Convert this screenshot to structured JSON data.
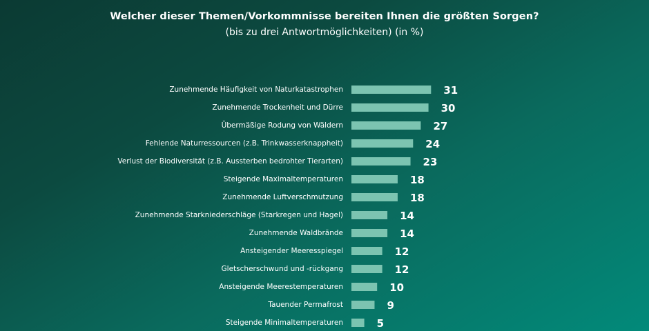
{
  "chart_data": {
    "type": "bar",
    "orientation": "horizontal",
    "title": "Welcher dieser Themen/Vorkommnisse bereiten Ihnen die größten Sorgen?",
    "subtitle": "(bis zu drei Antwortmöglichkeiten) (in %)",
    "categories": [
      "Zunehmende Häufigkeit von Naturkatastrophen",
      "Zunehmende Trockenheit und Dürre",
      "Übermäßige Rodung von Wäldern",
      "Fehlende Naturressourcen (z.B. Trinkwasserknappheit)",
      "Verlust der Biodiversität (z.B. Aussterben bedrohter Tierarten)",
      "Steigende Maximaltemperaturen",
      "Zunehmende Luftverschmutzung",
      "Zunehmende Starkniederschläge (Starkregen und Hagel)",
      "Zunehmende Waldbrände",
      "Ansteigender Meeresspiegel",
      "Gletscherschwund und -rückgang",
      "Ansteigende Meerestemperaturen",
      "Tauender Permafrost",
      "Steigende Minimaltemperaturen"
    ],
    "values": [
      31,
      30,
      27,
      24,
      23,
      18,
      18,
      14,
      14,
      12,
      12,
      10,
      9,
      5
    ],
    "value_unit": "%",
    "bar_color": "#7cc4b1",
    "grid": false,
    "legend": "none"
  }
}
